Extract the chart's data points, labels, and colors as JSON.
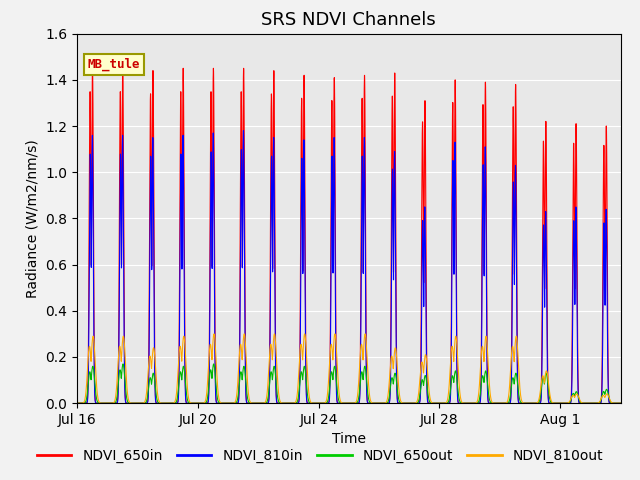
{
  "title": "SRS NDVI Channels",
  "xlabel": "Time",
  "ylabel": "Radiance (W/m2/nm/s)",
  "ylim": [
    0.0,
    1.6
  ],
  "annotation": "MB_tule",
  "legend_labels": [
    "NDVI_650in",
    "NDVI_810in",
    "NDVI_650out",
    "NDVI_810out"
  ],
  "legend_colors": [
    "#ff0000",
    "#0000ff",
    "#00cc00",
    "#ffaa00"
  ],
  "line_colors": {
    "NDVI_650in": "#ff0000",
    "NDVI_810in": "#0000ff",
    "NDVI_650out": "#00bb00",
    "NDVI_810out": "#ffaa00"
  },
  "plot_bg": "#e8e8e8",
  "fig_bg": "#f2f2f2",
  "num_days": 18,
  "peak_650in": [
    1.45,
    1.45,
    1.44,
    1.45,
    1.45,
    1.45,
    1.44,
    1.42,
    1.41,
    1.42,
    1.43,
    1.31,
    1.4,
    1.39,
    1.38,
    1.22,
    1.21,
    1.2
  ],
  "peak_810in": [
    1.16,
    1.16,
    1.15,
    1.16,
    1.17,
    1.18,
    1.15,
    1.14,
    1.15,
    1.15,
    1.09,
    0.85,
    1.13,
    1.11,
    1.03,
    0.83,
    0.85,
    0.84
  ],
  "peak_650out": [
    0.16,
    0.17,
    0.13,
    0.16,
    0.17,
    0.16,
    0.16,
    0.16,
    0.16,
    0.16,
    0.13,
    0.12,
    0.14,
    0.14,
    0.13,
    0.13,
    0.05,
    0.06
  ],
  "peak_810out": [
    0.29,
    0.29,
    0.24,
    0.29,
    0.3,
    0.3,
    0.3,
    0.3,
    0.3,
    0.3,
    0.24,
    0.21,
    0.29,
    0.29,
    0.29,
    0.14,
    0.04,
    0.04
  ],
  "tick_days": [
    0,
    4,
    8,
    12,
    16
  ],
  "tick_labels": [
    "Jul 16",
    "Jul 20",
    "Jul 24",
    "Jul 28",
    "Aug 1"
  ]
}
